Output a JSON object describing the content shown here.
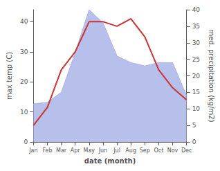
{
  "chart_data": {
    "type": "line",
    "categories": [
      "Jan",
      "Feb",
      "Mar",
      "Apr",
      "May",
      "Jun",
      "Jul",
      "Aug",
      "Sep",
      "Oct",
      "Nov",
      "Dec"
    ],
    "xlabel": "date (month)",
    "ylabel": "max temp (C)",
    "y2label": "med. precipitation (kg/m2)",
    "series": [
      {
        "type": "area",
        "axis": "y2",
        "color": "#aab4e8",
        "values": [
          11.5,
          12.0,
          15.0,
          27.0,
          40.0,
          36.0,
          26.0,
          24.0,
          23.0,
          24.0,
          24.0,
          14.0
        ]
      },
      {
        "type": "line",
        "color": "#cc3333",
        "values": [
          5.5,
          11.5,
          24.0,
          30.0,
          40.0,
          40.0,
          38.5,
          41.0,
          35.0,
          24.0,
          18.0,
          14.0
        ]
      }
    ],
    "ylim": [
      0,
      44
    ],
    "yticks": [
      0,
      10,
      20,
      30,
      40
    ],
    "y2lim": [
      0,
      40
    ],
    "y2ticks": [
      0,
      5,
      10,
      15,
      20,
      25,
      30,
      35,
      40
    ],
    "grid": false
  }
}
